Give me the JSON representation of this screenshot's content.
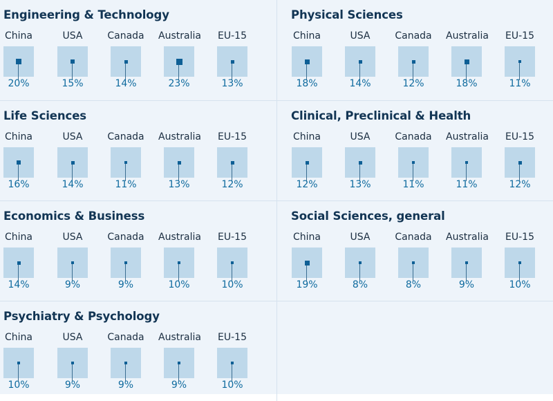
{
  "chart_data": [
    {
      "type": "scatter",
      "title": "Engineering & Technology",
      "categories": [
        "China",
        "USA",
        "Canada",
        "Australia",
        "EU-15"
      ],
      "values": [
        20,
        15,
        14,
        23,
        13
      ],
      "labels": [
        "20%",
        "15%",
        "14%",
        "23%",
        "13%"
      ]
    },
    {
      "type": "scatter",
      "title": "Physical Sciences",
      "categories": [
        "China",
        "USA",
        "Canada",
        "Australia",
        "EU-15"
      ],
      "values": [
        18,
        14,
        12,
        18,
        11
      ],
      "labels": [
        "18%",
        "14%",
        "12%",
        "18%",
        "11%"
      ]
    },
    {
      "type": "scatter",
      "title": "Life Sciences",
      "categories": [
        "China",
        "USA",
        "Canada",
        "Australia",
        "EU-15"
      ],
      "values": [
        16,
        14,
        11,
        13,
        12
      ],
      "labels": [
        "16%",
        "14%",
        "11%",
        "13%",
        "12%"
      ]
    },
    {
      "type": "scatter",
      "title": "Clinical, Preclinical & Health",
      "categories": [
        "China",
        "USA",
        "Canada",
        "Australia",
        "EU-15"
      ],
      "values": [
        12,
        13,
        11,
        11,
        12
      ],
      "labels": [
        "12%",
        "13%",
        "11%",
        "11%",
        "12%"
      ]
    },
    {
      "type": "scatter",
      "title": "Economics & Business",
      "categories": [
        "China",
        "USA",
        "Canada",
        "Australia",
        "EU-15"
      ],
      "values": [
        14,
        9,
        9,
        10,
        10
      ],
      "labels": [
        "14%",
        "9%",
        "9%",
        "10%",
        "10%"
      ]
    },
    {
      "type": "scatter",
      "title": "Social Sciences, general",
      "categories": [
        "China",
        "USA",
        "Canada",
        "Australia",
        "EU-15"
      ],
      "values": [
        19,
        8,
        8,
        9,
        10
      ],
      "labels": [
        "19%",
        "8%",
        "8%",
        "9%",
        "10%"
      ]
    },
    {
      "type": "scatter",
      "title": "Psychiatry & Psychology",
      "categories": [
        "China",
        "USA",
        "Canada",
        "Australia",
        "EU-15"
      ],
      "values": [
        10,
        9,
        9,
        9,
        10
      ],
      "labels": [
        "10%",
        "9%",
        "9%",
        "9%",
        "10%"
      ]
    }
  ]
}
